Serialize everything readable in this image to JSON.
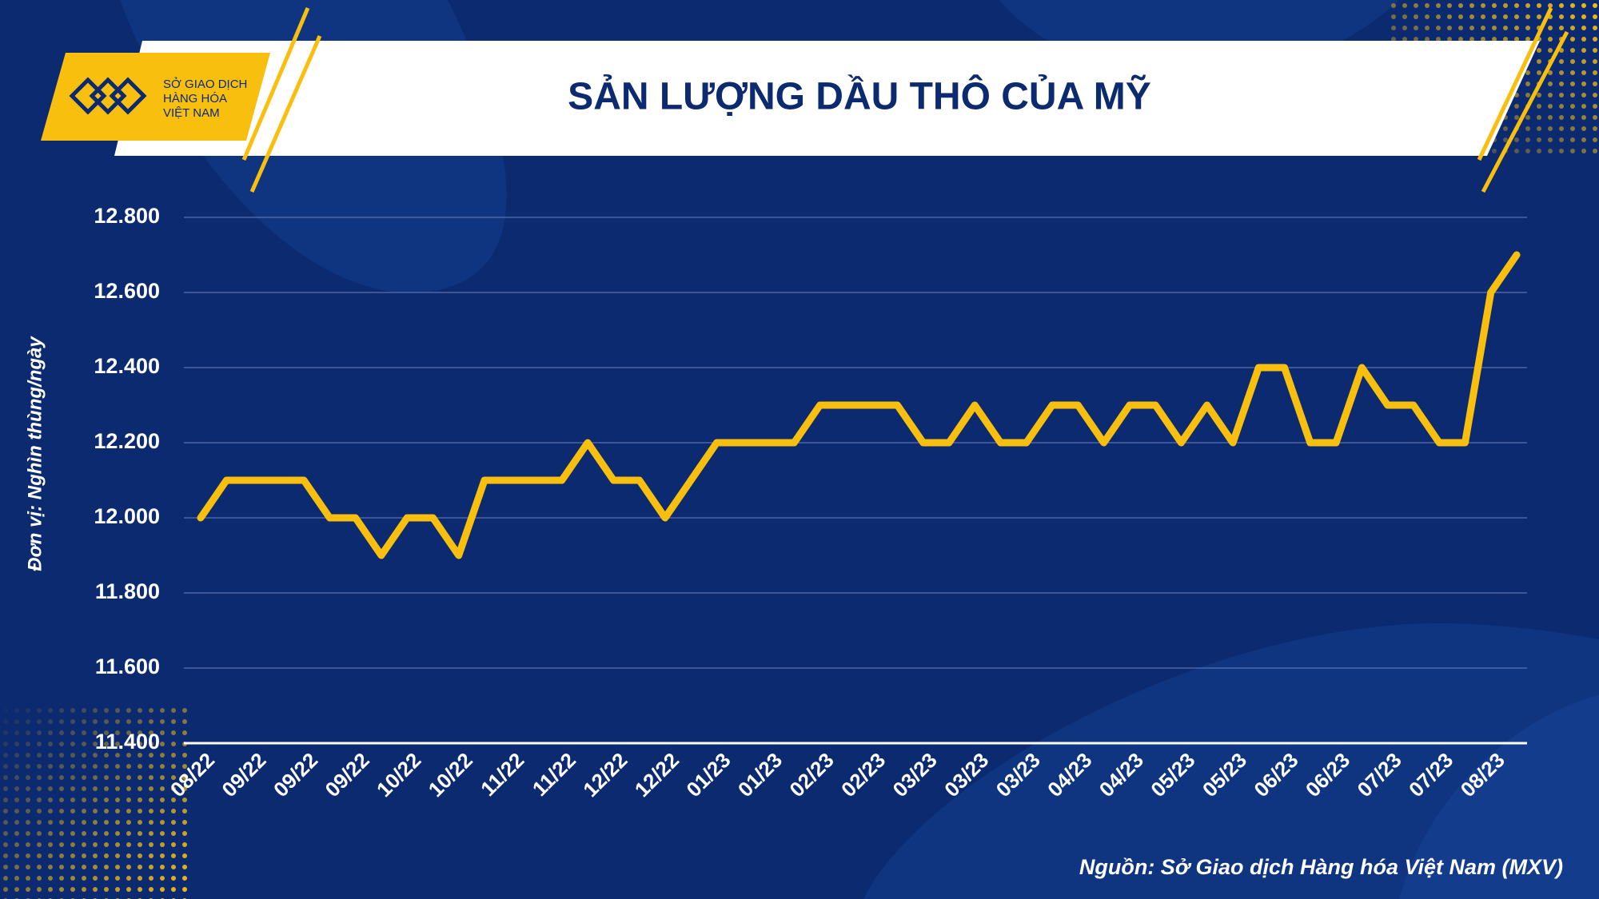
{
  "logo": {
    "lines": [
      "SỞ GIAO DỊCH",
      "HÀNG HÓA",
      "VIỆT NAM"
    ]
  },
  "chart_data": {
    "type": "line",
    "title": "SẢN LƯỢNG DẦU THÔ CỦA MỸ",
    "y_label": "Đơn vị: Nghìn thùng/ngày",
    "source": "Nguồn: Sở Giao dịch Hàng hóa Việt Nam (MXV)",
    "color": "#f9bf0f",
    "grid": true,
    "categories": [
      "08/22",
      null,
      "09/22",
      null,
      "09/22",
      null,
      "09/22",
      null,
      "10/22",
      null,
      "10/22",
      null,
      "11/22",
      null,
      "11/22",
      null,
      "12/22",
      null,
      "12/22",
      null,
      "01/23",
      null,
      "01/23",
      null,
      "02/23",
      null,
      "02/23",
      null,
      "03/23",
      null,
      "03/23",
      null,
      "03/23",
      null,
      "04/23",
      null,
      "04/23",
      null,
      "05/23",
      null,
      "05/23",
      null,
      "06/23",
      null,
      "06/23",
      null,
      "07/23",
      null,
      "07/23",
      null,
      "08/23",
      null
    ],
    "values": [
      12000,
      12100,
      12100,
      12100,
      12100,
      12000,
      12000,
      11900,
      12000,
      12000,
      11900,
      12100,
      12100,
      12100,
      12100,
      12200,
      12100,
      12100,
      12000,
      12100,
      12200,
      12200,
      12200,
      12200,
      12300,
      12300,
      12300,
      12300,
      12200,
      12200,
      12300,
      12200,
      12200,
      12300,
      12300,
      12200,
      12300,
      12300,
      12200,
      12300,
      12200,
      12400,
      12400,
      12200,
      12200,
      12400,
      12300,
      12300,
      12200,
      12200,
      12600,
      12700
    ],
    "ylim": [
      11400,
      12800
    ],
    "yticks": [
      {
        "value": 11400,
        "label": "11.400"
      },
      {
        "value": 11600,
        "label": "11.600"
      },
      {
        "value": 11800,
        "label": "11.800"
      },
      {
        "value": 12000,
        "label": "12.000"
      },
      {
        "value": 12200,
        "label": "12.200"
      },
      {
        "value": 12400,
        "label": "12.400"
      },
      {
        "value": 12600,
        "label": "12.600"
      },
      {
        "value": 12800,
        "label": "12.800"
      }
    ]
  }
}
